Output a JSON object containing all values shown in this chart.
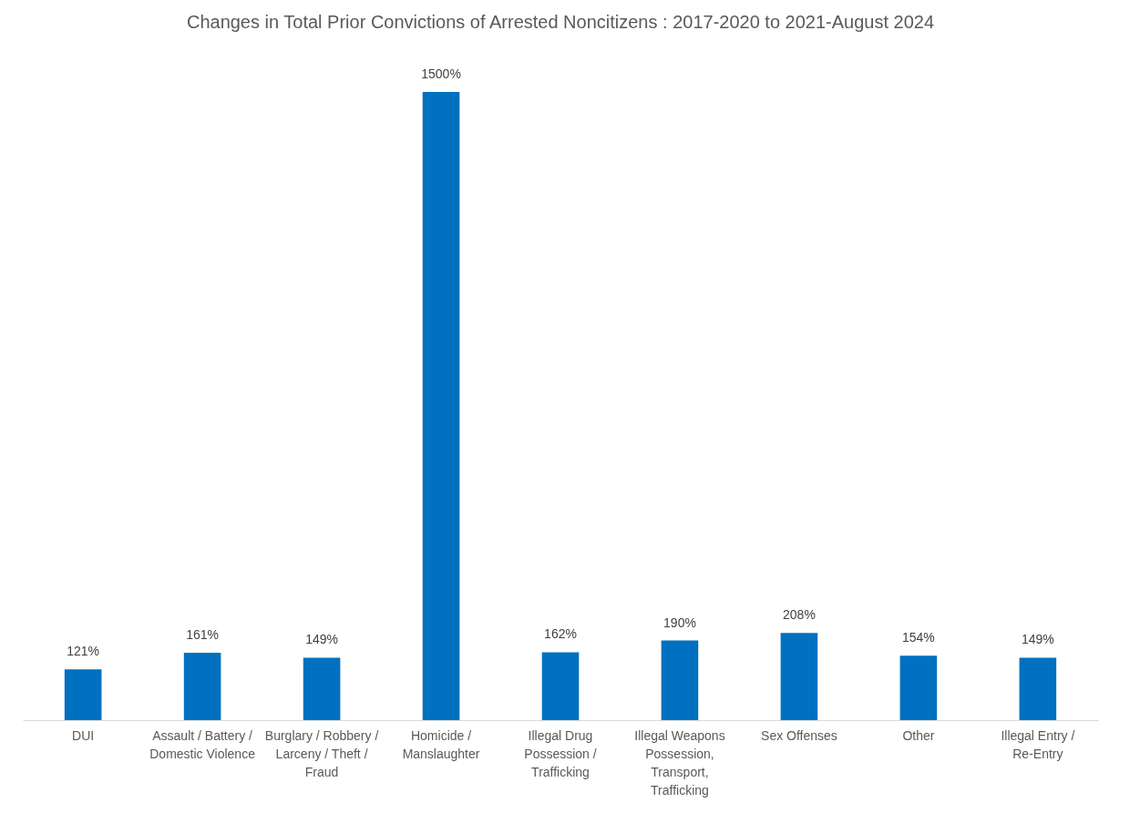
{
  "chart_data": {
    "type": "bar",
    "title": "Changes in Total Prior Convictions of Arrested Noncitizens : 2017-2020 to 2021-August 2024",
    "categories": [
      "DUI",
      "Assault / Battery / Domestic Violence",
      "Burglary / Robbery / Larceny / Theft / Fraud",
      "Homicide / Manslaughter",
      "Illegal Drug Possession / Trafficking",
      "Illegal Weapons Possession, Transport, Trafficking",
      "Sex Offenses",
      "Other",
      "Illegal Entry / Re-Entry"
    ],
    "values": [
      121,
      161,
      149,
      1500,
      162,
      190,
      208,
      154,
      149
    ],
    "value_labels": [
      "121%",
      "161%",
      "149%",
      "1500%",
      "162%",
      "190%",
      "208%",
      "154%",
      "149%"
    ],
    "color": "#0070c0"
  }
}
